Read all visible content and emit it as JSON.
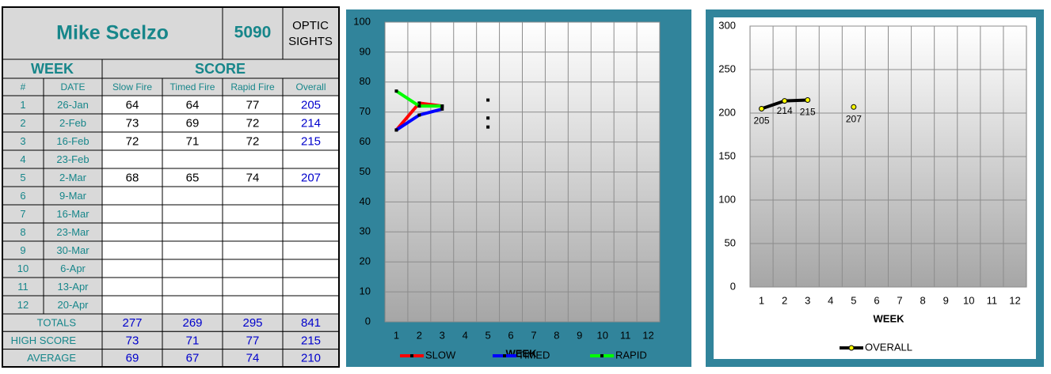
{
  "table": {
    "name": "Mike Scelzo",
    "number": "5090",
    "label_lines": [
      "OPTIC",
      "SIGHTS"
    ],
    "group_headers": [
      "WEEK",
      "SCORE"
    ],
    "columns": [
      "#",
      "DATE",
      "Slow Fire",
      "Timed Fire",
      "Rapid Fire",
      "Overall"
    ],
    "rows": [
      [
        1,
        "26-Jan",
        64,
        64,
        77,
        205
      ],
      [
        2,
        "2-Feb",
        73,
        69,
        72,
        214
      ],
      [
        3,
        "16-Feb",
        72,
        71,
        72,
        215
      ],
      [
        4,
        "23-Feb",
        null,
        null,
        null,
        null
      ],
      [
        5,
        "2-Mar",
        68,
        65,
        74,
        207
      ],
      [
        6,
        "9-Mar",
        null,
        null,
        null,
        null
      ],
      [
        7,
        "16-Mar",
        null,
        null,
        null,
        null
      ],
      [
        8,
        "23-Mar",
        null,
        null,
        null,
        null
      ],
      [
        9,
        "30-Mar",
        null,
        null,
        null,
        null
      ],
      [
        10,
        "6-Apr",
        null,
        null,
        null,
        null
      ],
      [
        11,
        "13-Apr",
        null,
        null,
        null,
        null
      ],
      [
        12,
        "20-Apr",
        null,
        null,
        null,
        null
      ]
    ],
    "summary": [
      {
        "label": "TOTALS",
        "values": [
          277,
          269,
          295,
          841
        ]
      },
      {
        "label": "HIGH SCORE",
        "values": [
          73,
          71,
          77,
          215
        ]
      },
      {
        "label": "AVERAGE",
        "values": [
          69,
          67,
          74,
          210
        ]
      }
    ]
  },
  "chart_data": [
    {
      "type": "line",
      "x_label": "WEEK",
      "categories": [
        "1",
        "2",
        "3",
        "4",
        "5",
        "6",
        "7",
        "8",
        "9",
        "10",
        "11",
        "12"
      ],
      "series": [
        {
          "name": "SLOW",
          "color": "#ff0000",
          "values": [
            64,
            73,
            72,
            null,
            68,
            null,
            null,
            null,
            null,
            null,
            null,
            null
          ]
        },
        {
          "name": "TIMED",
          "color": "#0000ff",
          "values": [
            64,
            69,
            71,
            null,
            65,
            null,
            null,
            null,
            null,
            null,
            null,
            null
          ]
        },
        {
          "name": "RAPID",
          "color": "#00ff00",
          "values": [
            77,
            72,
            72,
            null,
            74,
            null,
            null,
            null,
            null,
            null,
            null,
            null
          ]
        }
      ],
      "ylim": [
        0,
        100
      ],
      "yticks": [
        0,
        10,
        20,
        30,
        40,
        50,
        60,
        70,
        80,
        90,
        100
      ],
      "grid": true,
      "legend": "bottom",
      "data_labels": false
    },
    {
      "type": "line",
      "x_label": "WEEK",
      "categories": [
        "1",
        "2",
        "3",
        "4",
        "5",
        "6",
        "7",
        "8",
        "9",
        "10",
        "11",
        "12"
      ],
      "series": [
        {
          "name": "OVERALL",
          "color": "#000000",
          "marker_color": "#ffff00",
          "values": [
            205,
            214,
            215,
            null,
            207,
            null,
            null,
            null,
            null,
            null,
            null,
            null
          ]
        }
      ],
      "ylim": [
        0,
        300
      ],
      "yticks": [
        0,
        50,
        100,
        150,
        200,
        250,
        300
      ],
      "grid": true,
      "legend": "bottom",
      "data_labels": true
    }
  ]
}
